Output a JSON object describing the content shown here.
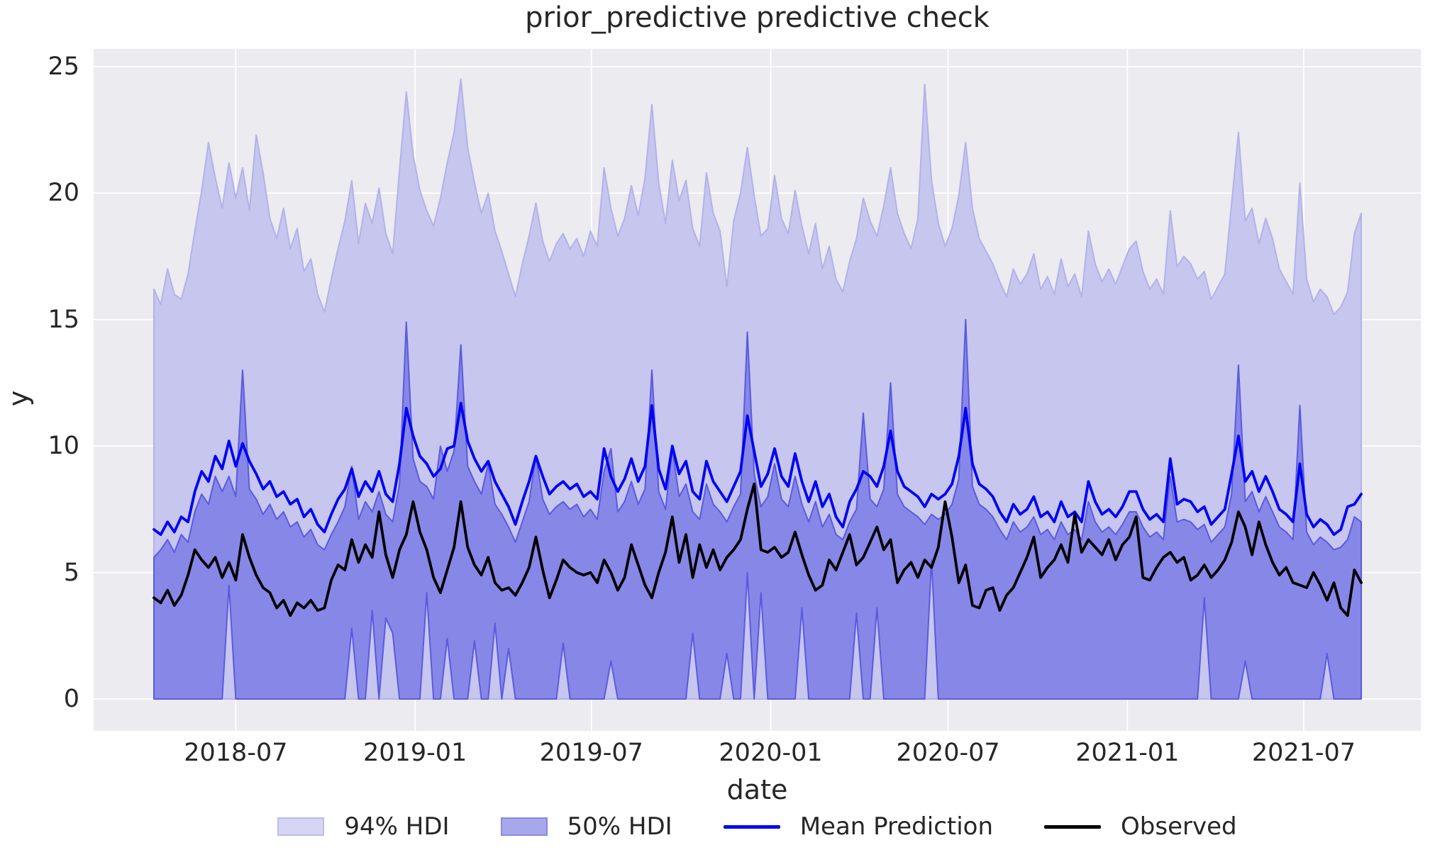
{
  "title": "prior_predictive predictive check",
  "chart_data": {
    "type": "line",
    "title": "prior_predictive predictive check",
    "xlabel": "date",
    "ylabel": "y",
    "grid": true,
    "legend_position": "bottom-center",
    "figure_background": "#ffffff",
    "background": "#ebebf0",
    "grid_color": "#ffffff",
    "text_color": "#262626",
    "x_start_date": "2018-04-08",
    "x_step_days": 7,
    "n_points": 178,
    "ylim": [
      -1.3,
      25.8
    ],
    "y_ticks": [
      0,
      5,
      10,
      15,
      20,
      25
    ],
    "x_ticks": [
      {
        "label": "2018-07",
        "date": "2018-07-01"
      },
      {
        "label": "2019-01",
        "date": "2019-01-01"
      },
      {
        "label": "2019-07",
        "date": "2019-07-01"
      },
      {
        "label": "2020-01",
        "date": "2020-01-01"
      },
      {
        "label": "2020-07",
        "date": "2020-07-01"
      },
      {
        "label": "2021-01",
        "date": "2021-01-01"
      },
      {
        "label": "2021-07",
        "date": "2021-07-01"
      }
    ],
    "series": [
      {
        "name": "94% HDI",
        "type": "band",
        "fill": "#c6c6ee",
        "edge": "#b2b2ea",
        "legend_fill": "#d6d6f4",
        "legend_edge": "#bcbcee",
        "lower_constant": 0,
        "upper": [
          16.2,
          15.6,
          17.0,
          16.0,
          15.8,
          16.8,
          18.5,
          20.1,
          22.0,
          20.6,
          19.4,
          21.2,
          19.8,
          21.0,
          19.3,
          22.3,
          20.8,
          19.0,
          18.2,
          19.4,
          17.8,
          18.6,
          16.9,
          17.4,
          16.0,
          15.3,
          16.6,
          17.8,
          18.9,
          20.5,
          18.0,
          19.6,
          18.8,
          20.2,
          18.4,
          17.6,
          20.9,
          24.0,
          21.5,
          20.1,
          19.3,
          18.7,
          19.8,
          21.2,
          22.4,
          24.5,
          21.8,
          20.4,
          19.2,
          20.0,
          18.5,
          17.7,
          16.8,
          15.9,
          17.2,
          18.3,
          19.6,
          18.1,
          17.3,
          18.0,
          18.4,
          17.8,
          18.2,
          17.5,
          18.5,
          17.9,
          21.0,
          19.4,
          18.3,
          19.0,
          20.3,
          19.1,
          20.6,
          23.5,
          20.4,
          18.8,
          21.3,
          19.7,
          20.5,
          18.6,
          17.9,
          20.8,
          19.2,
          18.5,
          16.3,
          18.9,
          20.0,
          21.8,
          19.9,
          18.3,
          18.6,
          20.7,
          19.0,
          18.4,
          20.1,
          18.7,
          17.6,
          18.8,
          17.0,
          17.9,
          16.6,
          16.1,
          17.3,
          18.2,
          19.8,
          18.9,
          18.3,
          19.5,
          21.0,
          19.2,
          18.4,
          17.8,
          19.0,
          24.3,
          20.5,
          18.8,
          17.9,
          18.6,
          19.9,
          22.0,
          19.4,
          18.2,
          17.7,
          17.2,
          16.5,
          15.9,
          17.0,
          16.4,
          16.8,
          17.6,
          16.2,
          16.7,
          16.0,
          17.4,
          16.3,
          16.8,
          15.9,
          18.5,
          17.2,
          16.5,
          17.0,
          16.4,
          17.1,
          17.8,
          18.1,
          16.9,
          16.2,
          16.6,
          16.0,
          19.3,
          17.1,
          17.5,
          17.2,
          16.6,
          16.9,
          15.8,
          16.3,
          16.8,
          19.6,
          22.4,
          18.9,
          19.4,
          18.0,
          19.0,
          18.2,
          17.0,
          16.5,
          16.0,
          20.4,
          16.6,
          15.7,
          16.2,
          15.9,
          15.2,
          15.5,
          16.1,
          18.4,
          19.2
        ]
      },
      {
        "name": "50% HDI",
        "type": "band",
        "fill": "#8787e8",
        "edge": "#5a5ae0",
        "legend_fill": "#a7a7ec",
        "legend_edge": "#8888e4",
        "lower": [
          0,
          0,
          0,
          0,
          0,
          0,
          0,
          0,
          0,
          0,
          0,
          4.5,
          0,
          0,
          0,
          0,
          0,
          0,
          0,
          0,
          0,
          0,
          0,
          0,
          0,
          0,
          0,
          0,
          0,
          2.8,
          0,
          0,
          3.5,
          0,
          3.2,
          2.6,
          0,
          0,
          0,
          0,
          4.2,
          0,
          0,
          2.4,
          0,
          0,
          0,
          2.3,
          0,
          0,
          3.0,
          0,
          2.0,
          0,
          0,
          0,
          0,
          0,
          0,
          0,
          2.2,
          0,
          0,
          0,
          0,
          0,
          0,
          1.5,
          0,
          0,
          0,
          0,
          0,
          0,
          0,
          0,
          0,
          0,
          0,
          2.6,
          0,
          0,
          0,
          0,
          1.8,
          0,
          0,
          5.0,
          0,
          4.2,
          0,
          0,
          0,
          0,
          0,
          3.6,
          0,
          0,
          0,
          0,
          0,
          0,
          0,
          3.4,
          0,
          0,
          3.6,
          0,
          0,
          0,
          0,
          0,
          0,
          0,
          5.5,
          0,
          0,
          0,
          0,
          0,
          0,
          0,
          0,
          0,
          0,
          0,
          0,
          0,
          0,
          0,
          0,
          0,
          0,
          0,
          0,
          0,
          0,
          0,
          0,
          0,
          0,
          0,
          0,
          0,
          0,
          0,
          0,
          0,
          0,
          0,
          0,
          0,
          0,
          0,
          4.0,
          0,
          0,
          0,
          0,
          0,
          1.5,
          0,
          0,
          0,
          0,
          0,
          0,
          0,
          0,
          0,
          0,
          0,
          1.8,
          0,
          0,
          0,
          0,
          0
        ],
        "upper": [
          5.6,
          5.9,
          6.3,
          5.8,
          6.5,
          6.2,
          7.4,
          8.1,
          7.7,
          8.8,
          8.2,
          8.8,
          8.0,
          13.0,
          8.3,
          7.9,
          7.3,
          7.7,
          7.1,
          7.4,
          6.8,
          7.0,
          6.4,
          6.7,
          6.1,
          5.9,
          6.5,
          7.0,
          7.6,
          9.2,
          7.1,
          7.8,
          7.4,
          8.2,
          7.3,
          7.0,
          8.5,
          14.9,
          9.5,
          8.6,
          8.4,
          7.9,
          10.0,
          9.0,
          9.8,
          14.0,
          9.2,
          8.6,
          8.1,
          9.3,
          7.7,
          7.3,
          6.8,
          6.2,
          7.0,
          7.8,
          9.6,
          7.9,
          7.3,
          7.6,
          7.8,
          7.5,
          7.7,
          7.2,
          7.5,
          7.1,
          9.0,
          9.9,
          7.4,
          7.8,
          8.6,
          7.7,
          8.3,
          13.0,
          8.2,
          7.5,
          9.9,
          8.0,
          8.5,
          7.4,
          7.1,
          8.5,
          7.7,
          7.4,
          7.0,
          7.6,
          8.1,
          14.5,
          8.9,
          7.6,
          8.0,
          9.3,
          7.9,
          7.6,
          8.8,
          7.7,
          7.0,
          7.8,
          6.8,
          7.3,
          6.5,
          6.3,
          7.0,
          7.5,
          11.3,
          7.9,
          7.6,
          8.3,
          12.5,
          8.1,
          7.6,
          7.4,
          7.2,
          6.9,
          7.3,
          7.1,
          7.3,
          7.7,
          8.7,
          15.0,
          8.4,
          7.7,
          7.5,
          7.2,
          6.7,
          6.3,
          7.0,
          6.6,
          6.8,
          7.2,
          6.5,
          6.7,
          6.3,
          7.0,
          6.5,
          6.7,
          6.3,
          7.8,
          7.0,
          6.6,
          6.8,
          6.5,
          6.9,
          7.4,
          7.4,
          6.8,
          6.4,
          6.6,
          6.3,
          8.8,
          7.0,
          7.1,
          7.0,
          6.7,
          6.9,
          6.2,
          6.5,
          6.8,
          8.1,
          13.2,
          7.8,
          8.2,
          7.4,
          8.0,
          7.4,
          6.8,
          6.6,
          6.3,
          11.6,
          6.6,
          6.1,
          6.4,
          6.2,
          5.9,
          6.0,
          6.3,
          7.2,
          7.0
        ]
      },
      {
        "name": "Mean Prediction",
        "type": "line",
        "color": "#0404f2",
        "values": [
          6.7,
          6.5,
          7.0,
          6.6,
          7.2,
          7.0,
          8.2,
          9.0,
          8.6,
          9.6,
          9.1,
          10.2,
          9.2,
          10.1,
          9.4,
          8.9,
          8.3,
          8.6,
          8.0,
          8.2,
          7.7,
          7.9,
          7.2,
          7.5,
          6.9,
          6.6,
          7.3,
          7.9,
          8.3,
          9.1,
          8.0,
          8.6,
          8.2,
          9.0,
          8.1,
          7.8,
          9.3,
          11.5,
          10.4,
          9.6,
          9.3,
          8.8,
          9.1,
          9.9,
          10.0,
          11.7,
          10.2,
          9.5,
          9.0,
          9.4,
          8.6,
          8.1,
          7.6,
          6.9,
          7.8,
          8.6,
          9.6,
          8.8,
          8.1,
          8.4,
          8.6,
          8.3,
          8.5,
          8.0,
          8.2,
          7.9,
          9.9,
          8.8,
          8.2,
          8.7,
          9.5,
          8.6,
          9.2,
          11.6,
          9.1,
          8.3,
          10.0,
          8.9,
          9.4,
          8.2,
          7.9,
          9.4,
          8.6,
          8.2,
          7.8,
          8.4,
          9.0,
          11.2,
          9.8,
          8.4,
          8.9,
          9.9,
          8.8,
          8.4,
          9.7,
          8.6,
          7.8,
          8.6,
          7.6,
          8.1,
          7.2,
          6.8,
          7.8,
          8.3,
          9.0,
          8.8,
          8.4,
          9.2,
          10.6,
          9.0,
          8.4,
          8.2,
          8.0,
          7.6,
          8.1,
          7.9,
          8.1,
          8.5,
          9.6,
          11.5,
          9.3,
          8.5,
          8.3,
          8.0,
          7.4,
          7.0,
          7.7,
          7.3,
          7.5,
          8.0,
          7.2,
          7.4,
          7.0,
          7.8,
          7.2,
          7.4,
          7.0,
          8.6,
          7.8,
          7.3,
          7.5,
          7.2,
          7.6,
          8.2,
          8.2,
          7.5,
          7.1,
          7.3,
          7.0,
          9.5,
          7.7,
          7.9,
          7.8,
          7.4,
          7.6,
          6.9,
          7.2,
          7.5,
          8.9,
          10.4,
          8.6,
          9.0,
          8.2,
          8.8,
          8.2,
          7.5,
          7.3,
          7.0,
          9.3,
          7.3,
          6.8,
          7.1,
          6.9,
          6.5,
          6.7,
          7.6,
          7.7,
          8.1
        ]
      },
      {
        "name": "Observed",
        "type": "line",
        "color": "#000000",
        "values": [
          4.0,
          3.8,
          4.3,
          3.7,
          4.1,
          4.9,
          5.9,
          5.5,
          5.2,
          5.6,
          4.8,
          5.4,
          4.7,
          6.5,
          5.6,
          4.9,
          4.4,
          4.2,
          3.6,
          3.9,
          3.3,
          3.8,
          3.6,
          3.9,
          3.5,
          3.6,
          4.7,
          5.3,
          5.1,
          6.3,
          5.4,
          6.1,
          5.6,
          7.4,
          5.7,
          4.8,
          5.9,
          6.5,
          7.8,
          6.6,
          5.9,
          4.8,
          4.2,
          5.1,
          6.0,
          7.8,
          6.0,
          5.3,
          4.9,
          5.6,
          4.6,
          4.3,
          4.4,
          4.1,
          4.6,
          5.2,
          6.4,
          5.1,
          4.0,
          4.7,
          5.5,
          5.2,
          5.0,
          4.9,
          5.0,
          4.6,
          5.5,
          5.0,
          4.3,
          4.8,
          6.1,
          5.3,
          4.5,
          4.0,
          5.0,
          5.8,
          7.2,
          5.4,
          6.5,
          4.8,
          6.1,
          5.2,
          5.9,
          5.1,
          5.6,
          5.9,
          6.3,
          7.5,
          8.5,
          5.9,
          5.8,
          6.0,
          5.6,
          5.8,
          6.6,
          5.7,
          4.9,
          4.3,
          4.5,
          5.5,
          5.1,
          5.8,
          6.5,
          5.3,
          5.6,
          6.2,
          6.8,
          5.9,
          6.3,
          4.6,
          5.1,
          5.4,
          4.8,
          5.5,
          5.2,
          6.0,
          7.8,
          6.4,
          4.6,
          5.3,
          3.7,
          3.6,
          4.3,
          4.4,
          3.5,
          4.1,
          4.4,
          5.0,
          5.6,
          6.4,
          4.8,
          5.2,
          5.5,
          6.1,
          5.4,
          7.3,
          5.8,
          6.3,
          6.0,
          5.7,
          6.3,
          5.5,
          6.1,
          6.4,
          7.2,
          4.8,
          4.7,
          5.2,
          5.6,
          5.8,
          5.4,
          5.6,
          4.7,
          4.9,
          5.3,
          4.8,
          5.1,
          5.5,
          6.2,
          7.4,
          6.8,
          5.7,
          7.0,
          6.1,
          5.4,
          4.9,
          5.2,
          4.6,
          4.5,
          4.4,
          5.0,
          4.5,
          3.9,
          4.6,
          3.6,
          3.3,
          5.1,
          4.6
        ]
      }
    ]
  }
}
